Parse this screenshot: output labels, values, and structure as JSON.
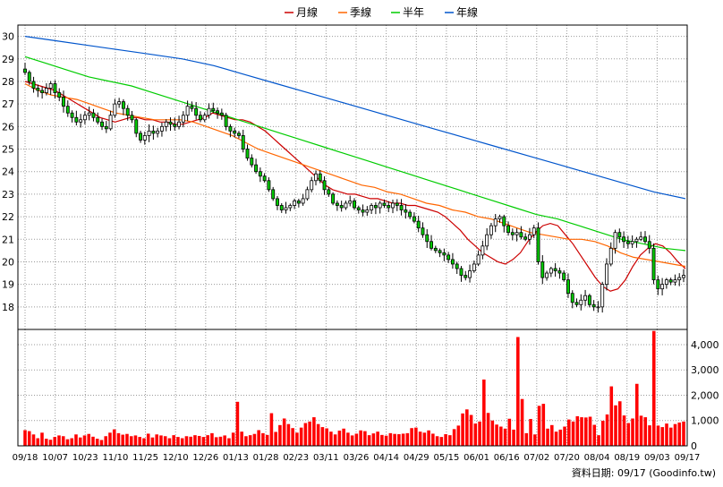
{
  "chart_data": {
    "type": "candlestick",
    "title": "",
    "legend": {
      "placement": "top-center",
      "entries": [
        {
          "label": "月線",
          "color": "#cc0000"
        },
        {
          "label": "季線",
          "color": "#ff6600"
        },
        {
          "label": "半年",
          "color": "#00cc00"
        },
        {
          "label": "年線",
          "color": "#0055cc"
        }
      ]
    },
    "price_axis": {
      "ylim": [
        17,
        30.5
      ],
      "ticks": [
        18,
        19,
        20,
        21,
        22,
        23,
        24,
        25,
        26,
        27,
        28,
        29,
        30
      ],
      "position": "left",
      "grid": true
    },
    "volume_axis": {
      "ylim": [
        0,
        4600
      ],
      "ticks": [
        "0",
        "1,000",
        "2,000",
        "3,000",
        "4,000"
      ],
      "tick_values": [
        0,
        1000,
        2000,
        3000,
        4000
      ],
      "position": "right",
      "grid": true
    },
    "x_tick_labels": [
      "09/18",
      "10/07",
      "10/23",
      "11/10",
      "11/25",
      "12/10",
      "12/26",
      "01/13",
      "01/28",
      "02/23",
      "03/11",
      "03/26",
      "04/14",
      "04/29",
      "05/15",
      "06/01",
      "06/16",
      "07/02",
      "07/20",
      "08/04",
      "08/19",
      "09/03",
      "09/17"
    ],
    "up_color": "#ffffff",
    "down_color": "#00cc00",
    "volume_color": "#ff0000",
    "close_series": [
      28.4,
      28.0,
      27.7,
      27.6,
      27.5,
      27.7,
      27.9,
      27.5,
      27.3,
      26.9,
      26.6,
      26.4,
      26.2,
      26.3,
      26.5,
      26.6,
      26.4,
      26.2,
      26.0,
      25.9,
      26.5,
      27.0,
      27.1,
      26.8,
      26.5,
      26.3,
      25.7,
      25.4,
      25.6,
      25.8,
      25.7,
      25.8,
      26.0,
      26.2,
      26.1,
      26.0,
      26.2,
      26.5,
      26.9,
      26.8,
      26.5,
      26.3,
      26.5,
      26.8,
      26.7,
      26.6,
      26.5,
      26.0,
      25.8,
      25.7,
      25.6,
      25.0,
      24.6,
      24.3,
      24.0,
      23.8,
      23.6,
      23.2,
      22.8,
      22.5,
      22.3,
      22.4,
      22.5,
      22.7,
      22.6,
      22.8,
      23.2,
      23.6,
      23.9,
      23.6,
      23.2,
      23.0,
      22.6,
      22.5,
      22.4,
      22.6,
      22.7,
      22.4,
      22.3,
      22.2,
      22.3,
      22.5,
      22.4,
      22.6,
      22.5,
      22.4,
      22.6,
      22.5,
      22.3,
      22.2,
      22.0,
      21.8,
      21.5,
      21.2,
      20.9,
      20.6,
      20.5,
      20.4,
      20.3,
      20.1,
      19.9,
      19.7,
      19.4,
      19.3,
      19.6,
      19.9,
      20.3,
      20.7,
      21.2,
      21.6,
      21.9,
      22.0,
      21.6,
      21.3,
      21.2,
      21.3,
      21.1,
      21.0,
      21.2,
      21.5,
      20.0,
      19.3,
      19.5,
      19.7,
      19.6,
      19.5,
      19.2,
      18.6,
      18.2,
      18.1,
      18.3,
      18.5,
      18.1,
      18.0,
      18.0,
      19.0,
      19.9,
      20.6,
      21.3,
      21.1,
      20.9,
      20.8,
      20.9,
      21.0,
      21.1,
      20.9,
      20.6,
      19.2,
      18.8,
      19.0,
      19.2,
      19.1,
      19.2,
      19.3,
      19.4
    ],
    "volume_series": [
      620,
      580,
      450,
      300,
      520,
      280,
      240,
      350,
      410,
      380,
      260,
      300,
      450,
      330,
      410,
      470,
      360,
      280,
      230,
      380,
      520,
      650,
      500,
      440,
      470,
      380,
      410,
      350,
      300,
      480,
      330,
      450,
      410,
      380,
      300,
      420,
      350,
      300,
      380,
      360,
      420,
      390,
      350,
      420,
      500,
      340,
      360,
      410,
      300,
      520,
      1740,
      560,
      380,
      420,
      470,
      620,
      500,
      430,
      1290,
      550,
      820,
      1080,
      860,
      700,
      520,
      720,
      900,
      960,
      1130,
      860,
      740,
      690,
      560,
      450,
      600,
      680,
      520,
      410,
      480,
      610,
      580,
      420,
      490,
      560,
      430,
      400,
      500,
      470,
      460,
      480,
      500,
      700,
      720,
      560,
      520,
      610,
      480,
      380,
      350,
      460,
      420,
      660,
      800,
      1280,
      1440,
      1220,
      880,
      960,
      2620,
      1300,
      1000,
      840,
      760,
      680,
      1070,
      640,
      4300,
      1850,
      500,
      1060,
      450,
      1580,
      1660,
      680,
      820,
      560,
      640,
      760,
      1040,
      960,
      1170,
      1130,
      1120,
      1150,
      830,
      420,
      990,
      1240,
      2350,
      1600,
      1760,
      1200,
      900,
      1080,
      2450,
      1190,
      1130,
      810,
      4540,
      800,
      740,
      880,
      720,
      860,
      920,
      960
    ],
    "ma20": [
      28.0,
      27.9,
      27.8,
      27.7,
      27.6,
      27.4,
      27.2,
      27.0,
      26.8,
      26.6,
      26.4,
      26.3,
      26.2,
      26.3,
      26.4,
      26.4,
      26.3,
      26.3,
      26.2,
      26.2,
      26.1,
      26.1,
      26.2,
      26.3,
      26.4,
      26.6,
      26.5,
      26.4,
      26.3,
      26.3,
      26.2,
      26.0,
      25.8,
      25.5,
      25.2,
      24.9,
      24.6,
      24.3,
      24.0,
      23.7,
      23.4,
      23.2,
      23.1,
      23.0,
      23.0,
      22.9,
      22.8,
      22.8,
      22.7,
      22.6,
      22.6,
      22.5,
      22.5,
      22.4,
      22.3,
      22.2,
      22.0,
      21.7,
      21.4,
      21.0,
      20.7,
      20.4,
      20.2,
      20.0,
      19.9,
      20.1,
      20.4,
      20.9,
      21.3,
      21.6,
      21.7,
      21.6,
      21.2,
      20.8,
      20.3,
      19.8,
      19.3,
      18.9,
      18.7,
      18.8,
      19.2,
      19.8,
      20.3,
      20.6,
      20.8,
      20.7,
      20.4,
      20.0,
      19.7
    ],
    "ma60": [
      27.9,
      27.6,
      27.4,
      27.3,
      27.2,
      27.0,
      26.8,
      26.6,
      26.5,
      26.4,
      26.3,
      26.3,
      26.3,
      26.2,
      26.0,
      25.8,
      25.6,
      25.3,
      25.0,
      24.8,
      24.6,
      24.4,
      24.2,
      24.0,
      23.8,
      23.6,
      23.4,
      23.3,
      23.1,
      23.0,
      22.8,
      22.6,
      22.5,
      22.3,
      22.2,
      22.0,
      21.9,
      21.7,
      21.5,
      21.3,
      21.2,
      21.1,
      21.0,
      21.0,
      20.9,
      20.7,
      20.4,
      20.2,
      20.1,
      20.0,
      19.9,
      19.8
    ],
    "ma120": [
      29.1,
      28.8,
      28.5,
      28.2,
      28.0,
      27.8,
      27.5,
      27.2,
      26.9,
      26.6,
      26.3,
      26.0,
      25.7,
      25.4,
      25.1,
      24.8,
      24.5,
      24.2,
      23.9,
      23.6,
      23.3,
      23.0,
      22.7,
      22.4,
      22.1,
      21.9,
      21.6,
      21.3,
      21.0,
      20.8,
      20.6,
      20.5
    ],
    "ma240": [
      30.0,
      29.8,
      29.6,
      29.4,
      29.2,
      29.0,
      28.7,
      28.3,
      27.9,
      27.5,
      27.1,
      26.7,
      26.3,
      25.9,
      25.5,
      25.1,
      24.7,
      24.3,
      23.9,
      23.5,
      23.1,
      22.8
    ],
    "annotation": "資料日期: 09/17  (Goodinfo.tw)"
  }
}
